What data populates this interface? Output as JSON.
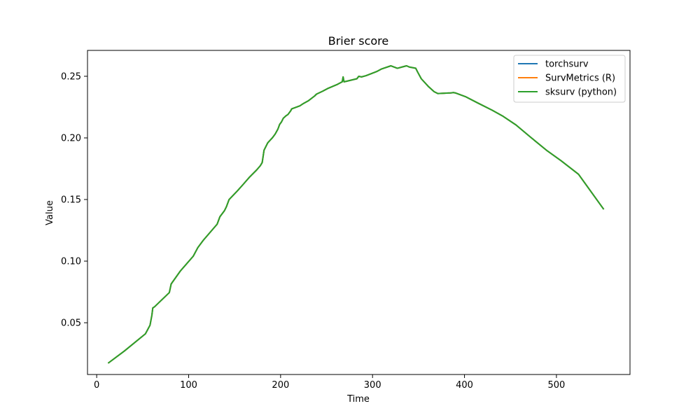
{
  "chart_data": {
    "type": "line",
    "title": "Brier score",
    "xlabel": "Time",
    "ylabel": "Value",
    "xlim": [
      -10,
      580
    ],
    "ylim": [
      0.008,
      0.271
    ],
    "x_ticks": [
      0,
      100,
      200,
      300,
      400,
      500
    ],
    "y_ticks": [
      0.05,
      0.1,
      0.15,
      0.2,
      0.25
    ],
    "y_tick_labels": [
      "0.05",
      "0.10",
      "0.15",
      "0.20",
      "0.25"
    ],
    "grid": false,
    "legend_position": "top-right",
    "series": [
      {
        "name": "torchsurv",
        "color": "#1f77b4",
        "x": [
          13,
          30,
          53,
          58,
          60,
          61,
          63,
          79,
          81,
          91,
          105,
          110,
          116,
          131,
          134,
          139,
          141,
          144,
          153,
          159,
          166,
          174,
          178,
          180,
          182,
          186,
          191,
          194,
          197,
          199,
          201,
          203,
          206,
          208,
          211,
          212,
          221,
          225,
          230,
          237,
          239,
          246,
          251,
          262,
          267,
          268,
          269,
          272,
          283,
          285,
          288,
          293,
          305,
          310,
          320,
          327,
          332,
          337,
          340,
          347,
          349,
          353,
          361,
          367,
          371,
          385,
          388,
          390,
          401,
          414,
          430,
          442,
          456,
          472,
          490,
          505,
          524,
          551
        ],
        "values": [
          0.0175,
          0.027,
          0.041,
          0.048,
          0.056,
          0.062,
          0.063,
          0.0745,
          0.0815,
          0.092,
          0.104,
          0.111,
          0.117,
          0.13,
          0.136,
          0.141,
          0.144,
          0.15,
          0.157,
          0.162,
          0.168,
          0.174,
          0.1775,
          0.18,
          0.19,
          0.196,
          0.2,
          0.203,
          0.207,
          0.211,
          0.213,
          0.216,
          0.218,
          0.219,
          0.222,
          0.2235,
          0.226,
          0.228,
          0.23,
          0.234,
          0.2355,
          0.238,
          0.24,
          0.2435,
          0.2455,
          0.2495,
          0.2455,
          0.246,
          0.248,
          0.25,
          0.2495,
          0.2505,
          0.254,
          0.256,
          0.2585,
          0.2565,
          0.2575,
          0.2585,
          0.2575,
          0.2565,
          0.2535,
          0.248,
          0.2415,
          0.2375,
          0.236,
          0.2365,
          0.2368,
          0.2365,
          0.2335,
          0.2285,
          0.2225,
          0.2175,
          0.2105,
          0.2005,
          0.1895,
          0.1815,
          0.1705,
          0.1425
        ]
      },
      {
        "name": "SurvMetrics (R)",
        "color": "#ff7f0e",
        "x": [
          13,
          30,
          53,
          58,
          60,
          61,
          63,
          79,
          81,
          91,
          105,
          110,
          116,
          131,
          134,
          139,
          141,
          144,
          153,
          159,
          166,
          174,
          178,
          180,
          182,
          186,
          191,
          194,
          197,
          199,
          201,
          203,
          206,
          208,
          211,
          212,
          221,
          225,
          230,
          237,
          239,
          246,
          251,
          262,
          267,
          268,
          269,
          272,
          283,
          285,
          288,
          293,
          305,
          310,
          320,
          327,
          332,
          337,
          340,
          347,
          349,
          353,
          361,
          367,
          371,
          385,
          388,
          390,
          401,
          414,
          430,
          442,
          456,
          472,
          490,
          505,
          524,
          551
        ],
        "values": [
          0.0175,
          0.027,
          0.041,
          0.048,
          0.056,
          0.062,
          0.063,
          0.0745,
          0.0815,
          0.092,
          0.104,
          0.111,
          0.117,
          0.13,
          0.136,
          0.141,
          0.144,
          0.15,
          0.157,
          0.162,
          0.168,
          0.174,
          0.1775,
          0.18,
          0.19,
          0.196,
          0.2,
          0.203,
          0.207,
          0.211,
          0.213,
          0.216,
          0.218,
          0.219,
          0.222,
          0.2235,
          0.226,
          0.228,
          0.23,
          0.234,
          0.2355,
          0.238,
          0.24,
          0.2435,
          0.2455,
          0.2495,
          0.2455,
          0.246,
          0.248,
          0.25,
          0.2495,
          0.2505,
          0.254,
          0.256,
          0.2585,
          0.2565,
          0.2575,
          0.2585,
          0.2575,
          0.2565,
          0.2535,
          0.248,
          0.2415,
          0.2375,
          0.236,
          0.2365,
          0.2368,
          0.2365,
          0.2335,
          0.2285,
          0.2225,
          0.2175,
          0.2105,
          0.2005,
          0.1895,
          0.1815,
          0.1705,
          0.1425
        ]
      },
      {
        "name": "sksurv (python)",
        "color": "#2ca02c",
        "x": [
          13,
          30,
          53,
          58,
          60,
          61,
          63,
          79,
          81,
          91,
          105,
          110,
          116,
          131,
          134,
          139,
          141,
          144,
          153,
          159,
          166,
          174,
          178,
          180,
          182,
          186,
          191,
          194,
          197,
          199,
          201,
          203,
          206,
          208,
          211,
          212,
          221,
          225,
          230,
          237,
          239,
          246,
          251,
          262,
          267,
          268,
          269,
          272,
          283,
          285,
          288,
          293,
          305,
          310,
          320,
          327,
          332,
          337,
          340,
          347,
          349,
          353,
          361,
          367,
          371,
          385,
          388,
          390,
          401,
          414,
          430,
          442,
          456,
          472,
          490,
          505,
          524,
          551
        ],
        "values": [
          0.0175,
          0.027,
          0.041,
          0.048,
          0.056,
          0.062,
          0.063,
          0.0745,
          0.0815,
          0.092,
          0.104,
          0.111,
          0.117,
          0.13,
          0.136,
          0.141,
          0.144,
          0.15,
          0.157,
          0.162,
          0.168,
          0.174,
          0.1775,
          0.18,
          0.19,
          0.196,
          0.2,
          0.203,
          0.207,
          0.211,
          0.213,
          0.216,
          0.218,
          0.219,
          0.222,
          0.2235,
          0.226,
          0.228,
          0.23,
          0.234,
          0.2355,
          0.238,
          0.24,
          0.2435,
          0.2455,
          0.2495,
          0.2455,
          0.246,
          0.248,
          0.25,
          0.2495,
          0.2505,
          0.254,
          0.256,
          0.2585,
          0.2565,
          0.2575,
          0.2585,
          0.2575,
          0.2565,
          0.2535,
          0.248,
          0.2415,
          0.2375,
          0.236,
          0.2365,
          0.2368,
          0.2365,
          0.2335,
          0.2285,
          0.2225,
          0.2175,
          0.2105,
          0.2005,
          0.1895,
          0.1815,
          0.1705,
          0.1425
        ]
      }
    ]
  }
}
